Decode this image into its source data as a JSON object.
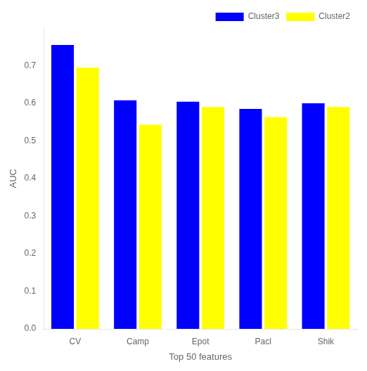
{
  "chart_data": {
    "type": "bar",
    "categories": [
      "CV",
      "Camp",
      "Epot",
      "Pacl",
      "Shik"
    ],
    "series": [
      {
        "name": "Cluster3",
        "color": "#0000FF",
        "values": [
          0.755,
          0.608,
          0.604,
          0.585,
          0.6
        ]
      },
      {
        "name": "Cluster2",
        "color": "#FFFF00",
        "values": [
          0.695,
          0.543,
          0.59,
          0.563,
          0.59
        ]
      }
    ],
    "xlabel": "Top 50 features",
    "ylabel": "AUC",
    "ylim": [
      0.0,
      0.8
    ],
    "yticks": [
      {
        "value": 0.0,
        "label": "0.0"
      },
      0.1,
      0.2,
      0.3,
      0.4,
      0.5,
      0.6,
      0.7
    ],
    "grid": false,
    "legend": "upper right"
  }
}
